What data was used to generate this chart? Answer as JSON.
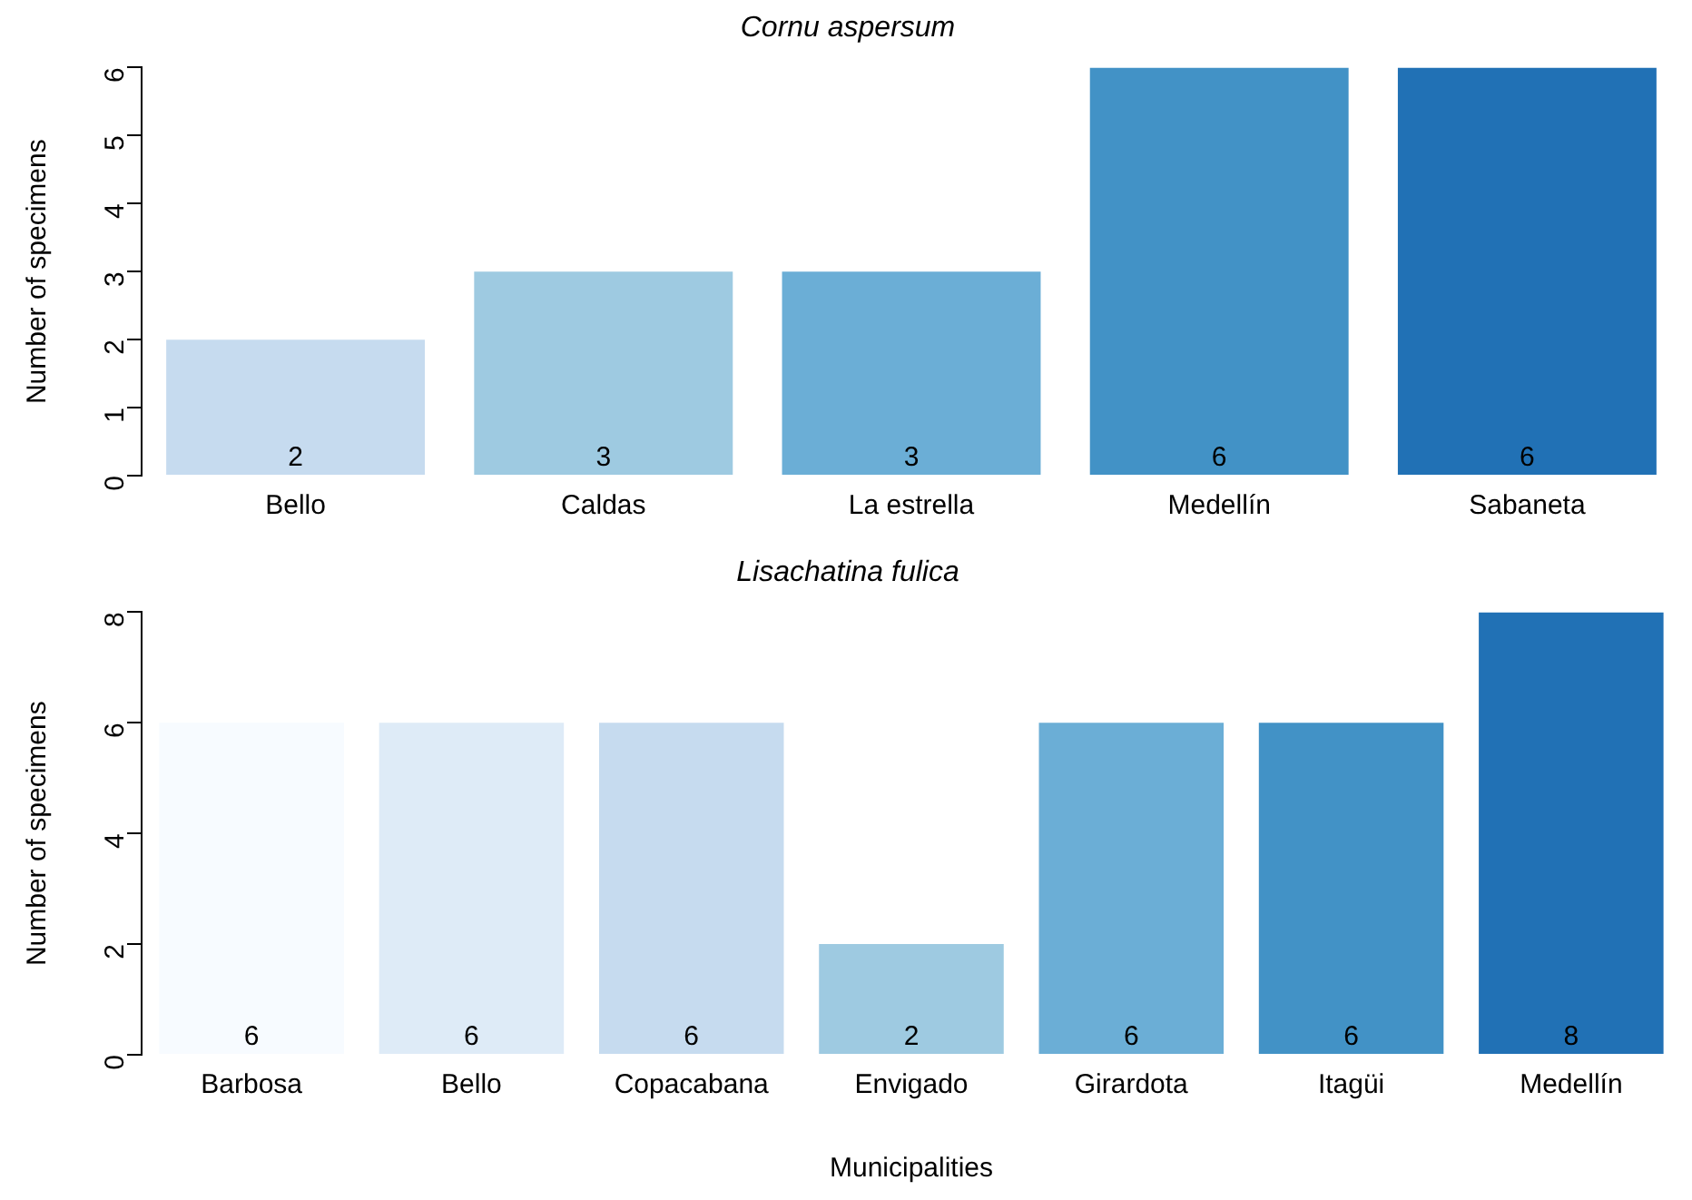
{
  "chart_data": [
    {
      "type": "bar",
      "title": "Cornu aspersum",
      "ylabel": "Number of specimens",
      "categories": [
        "Bello",
        "Caldas",
        "La estrella",
        "Medellín",
        "Sabaneta"
      ],
      "values": [
        2,
        3,
        3,
        6,
        6
      ],
      "colors": [
        "#c6dbef",
        "#9ecae1",
        "#6baed6",
        "#4292c6",
        "#2171b5"
      ],
      "ylim": [
        0,
        6
      ],
      "yticks": [
        0,
        1,
        2,
        3,
        4,
        5,
        6
      ],
      "data_labels": true,
      "grid": false,
      "legend": false
    },
    {
      "type": "bar",
      "title": "Lisachatina fulica",
      "xlabel": "Municipalities",
      "ylabel": "Number of specimens",
      "categories": [
        "Barbosa",
        "Bello",
        "Copacabana",
        "Envigado",
        "Girardota",
        "Itagüi",
        "Medellín"
      ],
      "values": [
        6,
        6,
        6,
        2,
        6,
        6,
        8
      ],
      "colors": [
        "#f7fbff",
        "#deebf7",
        "#c6dbef",
        "#9ecae1",
        "#6baed6",
        "#4292c6",
        "#2171b5"
      ],
      "ylim": [
        0,
        8
      ],
      "yticks": [
        0,
        2,
        4,
        6,
        8
      ],
      "data_labels": true,
      "grid": false,
      "legend": false
    }
  ]
}
